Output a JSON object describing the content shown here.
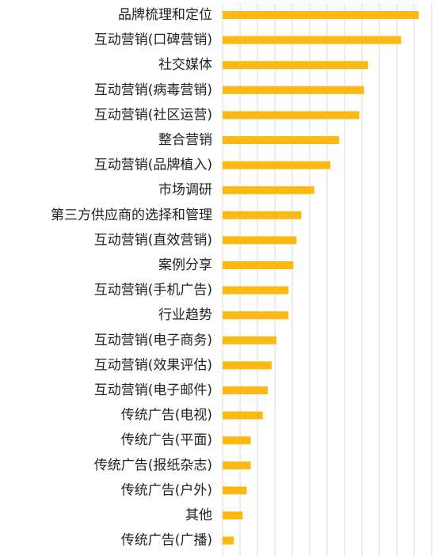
{
  "chart_data": {
    "type": "bar",
    "orientation": "horizontal",
    "categories": [
      "品牌梳理和定位",
      "互动营销(口碑营销)",
      "社交媒体",
      "互动营销(病毒营销)",
      "互动营销(社区运营)",
      "整合营销",
      "互动营销(品牌植入)",
      "市场调研",
      "第三方供应商的选择和管理",
      "互动营销(直效营销)",
      "案例分享",
      "互动营销(手机广告)",
      "行业趋势",
      "互动营销(电子商务)",
      "互动营销(效果评估)",
      "互动营销(电子邮件)",
      "传统广告(电视)",
      "传统广告(平面)",
      "传统广告(报纸杂志)",
      "传统广告(户外)",
      "其他",
      "传统广告(广播)"
    ],
    "values": [
      244,
      222,
      181,
      176,
      170,
      145,
      134,
      114,
      98,
      92,
      88,
      82,
      82,
      67,
      61,
      56,
      50,
      35,
      35,
      30,
      25,
      14
    ],
    "xlim": [
      0,
      260
    ],
    "grid": true,
    "colors": {
      "bar": "#FCB813",
      "grid": "#D9D9D9",
      "label": "#222222"
    }
  }
}
